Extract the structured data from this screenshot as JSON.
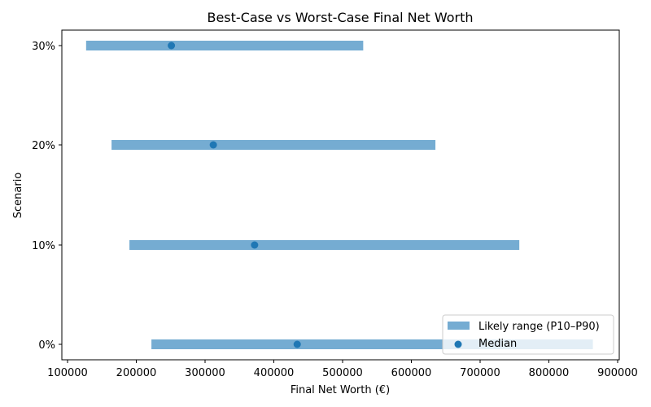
{
  "chart_data": {
    "type": "range-bar",
    "title": "Best-Case vs Worst-Case Final Net Worth",
    "xlabel": "Final Net Worth (€)",
    "ylabel": "Scenario",
    "xlim": [
      90000,
      900000
    ],
    "xticks": [
      100000,
      200000,
      300000,
      400000,
      500000,
      600000,
      700000,
      800000,
      900000
    ],
    "xtick_labels": [
      "100000",
      "200000",
      "300000",
      "400000",
      "500000",
      "600000",
      "700000",
      "800000",
      "900000"
    ],
    "categories": [
      "0%",
      "10%",
      "20%",
      "30%"
    ],
    "grid": false,
    "legend_position": "lower right",
    "series": [
      {
        "name": "Likely range (P10–P90)",
        "kind": "range",
        "color": "#75acd2",
        "low": [
          222000,
          190000,
          164000,
          127000
        ],
        "high": [
          864000,
          757000,
          635000,
          530000
        ]
      },
      {
        "name": "Median",
        "kind": "point",
        "color": "#1f77b4",
        "values": [
          434000,
          372000,
          312000,
          251000
        ]
      }
    ]
  },
  "legend": {
    "items": [
      {
        "label": "Likely range (P10–P90)",
        "symbol": "bar"
      },
      {
        "label": "Median",
        "symbol": "dot"
      }
    ]
  }
}
